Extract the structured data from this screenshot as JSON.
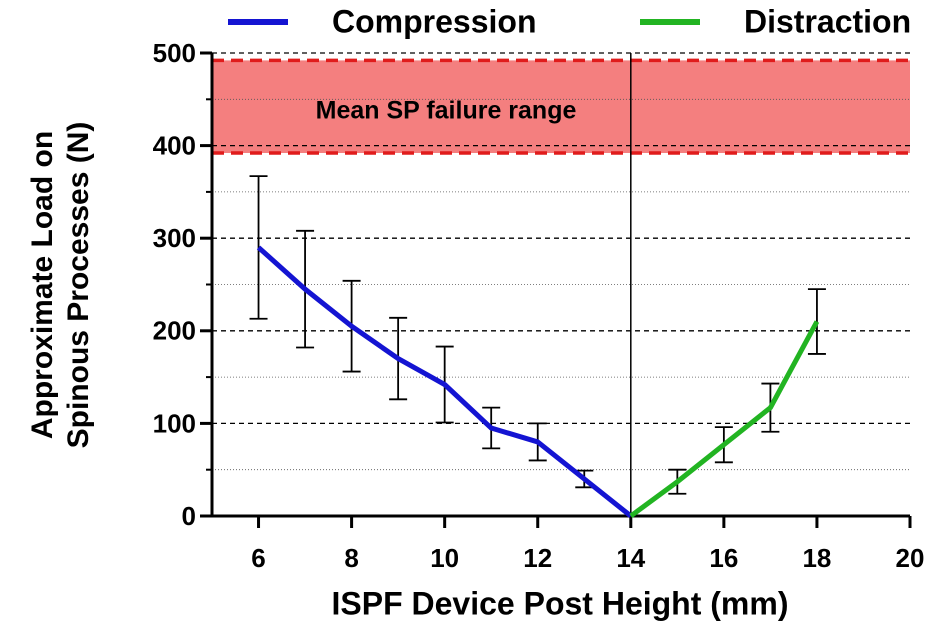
{
  "chart_data": {
    "type": "line",
    "xlabel": "ISPF Device Post Height (mm)",
    "ylabel": [
      "Approximate Load on",
      "Spinous Processes (N)"
    ],
    "xlim": [
      5,
      20
    ],
    "xticks": [
      6,
      8,
      10,
      12,
      14,
      16,
      18,
      20
    ],
    "ylim": [
      0,
      500
    ],
    "yticks": [
      0,
      100,
      200,
      300,
      400,
      500
    ],
    "yminor_ticks": [
      50,
      150,
      250,
      350,
      450
    ],
    "grid": true,
    "legend": "top",
    "series": [
      {
        "name": "Compression",
        "color": "#1414d2",
        "x": [
          6,
          7,
          8,
          9,
          10,
          11,
          12,
          13,
          14
        ],
        "values": [
          290,
          245,
          205,
          170,
          142,
          95,
          80,
          40,
          0
        ],
        "errors": [
          77,
          63,
          49,
          44,
          41,
          22,
          20,
          9,
          0
        ]
      },
      {
        "name": "Distraction",
        "color": "#22b422",
        "x": [
          14,
          15,
          16,
          17,
          18
        ],
        "values": [
          0,
          37,
          77,
          117,
          210
        ],
        "errors": [
          0,
          13,
          19,
          26,
          35
        ]
      }
    ],
    "band": {
      "range": [
        392,
        492
      ],
      "label": "Mean SP failure range",
      "color": "#f47f7f",
      "edge_color": "#e01c1c"
    },
    "vline": 14
  }
}
